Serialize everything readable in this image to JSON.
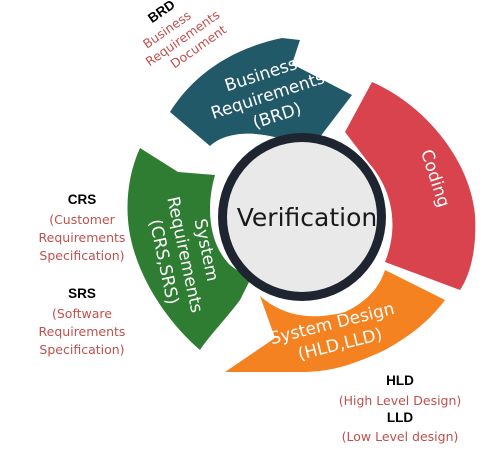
{
  "center": {
    "label": "Verification"
  },
  "segments": {
    "brd": {
      "lines": [
        "Business",
        "Requirements",
        "(BRD)"
      ],
      "color": "#215968"
    },
    "coding": {
      "lines": [
        "Coding"
      ],
      "color": "#d9434e"
    },
    "design": {
      "lines": [
        "System Design",
        "(HLD,LLD)"
      ],
      "color": "#f58220"
    },
    "sysreq": {
      "lines": [
        "System",
        "Requirements",
        "(CRS,SRS)"
      ],
      "color": "#2e7d32"
    }
  },
  "hub": {
    "ring_color": "#1f2530",
    "fill_color": "#e9e9e9"
  },
  "annotations": {
    "brd": {
      "abbr": "BRD",
      "lines": [
        "Business",
        "Requirements",
        "Document"
      ]
    },
    "crs": {
      "abbr": "CRS",
      "lines": [
        "(Customer",
        "Requirements",
        "Specification)"
      ]
    },
    "srs": {
      "abbr": "SRS",
      "lines": [
        "(Software",
        "Requirements",
        "Specification)"
      ]
    },
    "hld": {
      "abbr": "HLD",
      "lines": [
        "(High Level Design)"
      ]
    },
    "lld": {
      "abbr": "LLD",
      "lines": [
        "(Low Level design)"
      ]
    }
  }
}
